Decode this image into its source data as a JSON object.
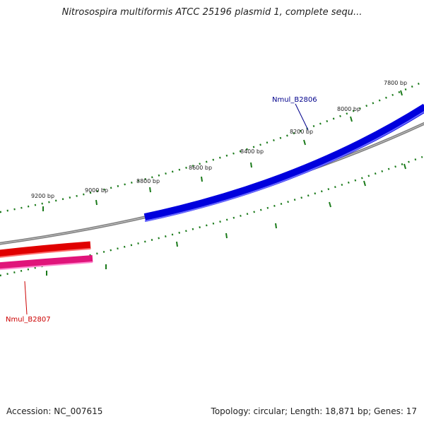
{
  "title": "Nitrosospira multiformis ATCC 25196 plasmid 1, complete sequ...",
  "footer": {
    "accession": "Accession: NC_007615",
    "summary": "Topology: circular; Length: 18,871 bp; Genes: 17"
  },
  "colors": {
    "backbone": "#7f7f7f",
    "tick": "#1a7a1a",
    "forward_gene": "#0000dd",
    "reverse_gene_outer": "#dd0000",
    "reverse_gene_inner": "#e0147a",
    "forward_label": "#00008b",
    "reverse_label": "#cc0000"
  },
  "map": {
    "tick_labels": [
      "7800 bp",
      "8000 bp",
      "8200 bp",
      "8400 bp",
      "8600 bp",
      "8800 bp",
      "9000 bp",
      "9200 bp"
    ],
    "genes": [
      {
        "label": "Nmul_B2806",
        "strand": "forward"
      },
      {
        "label": "Nmul_B2807",
        "strand": "reverse"
      }
    ]
  }
}
